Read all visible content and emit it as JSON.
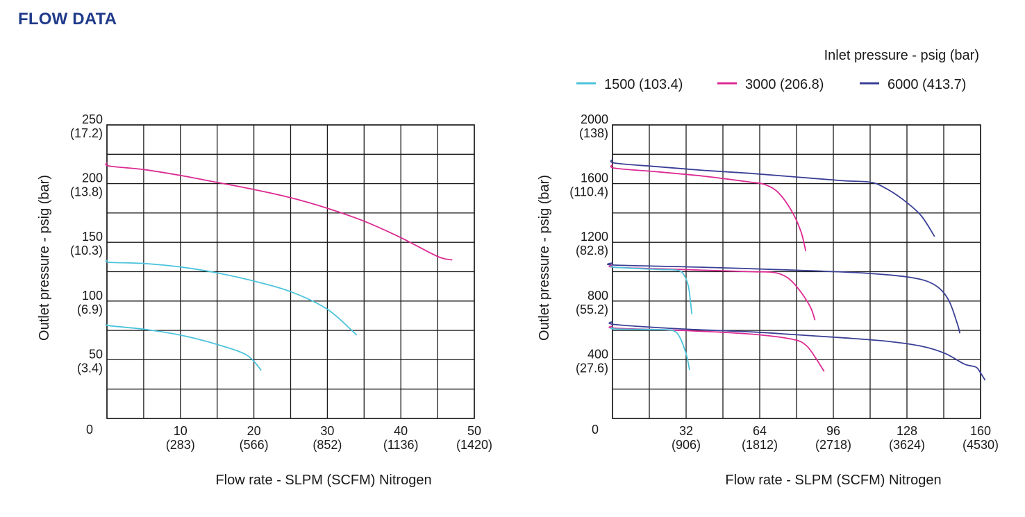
{
  "page": {
    "title": "FLOW DATA"
  },
  "colors": {
    "series_1500": "#4cc3dc",
    "series_3000": "#dc2a93",
    "series_6000": "#3a3f96",
    "grid": "#1a1a1a",
    "title": "#1f3a8a"
  },
  "legend": {
    "title": "Inlet pressure - psig (bar)",
    "items": [
      "1500 (103.4)",
      "3000 (206.8)",
      "6000 (413.7)"
    ]
  },
  "chart_data": [
    {
      "type": "line",
      "title": "",
      "xlabel": "Flow rate - SLPM (SCFM) Nitrogen",
      "ylabel": "Outlet pressure - psig (bar)",
      "xlim": [
        0,
        50
      ],
      "ylim": [
        0,
        250
      ],
      "grid": true,
      "x_ticks": [
        {
          "v": 0,
          "l1": "0",
          "l2": ""
        },
        {
          "v": 10,
          "l1": "10",
          "l2": "(283)"
        },
        {
          "v": 20,
          "l1": "20",
          "l2": "(566)"
        },
        {
          "v": 30,
          "l1": "30",
          "l2": "(852)"
        },
        {
          "v": 40,
          "l1": "40",
          "l2": "(1136)"
        },
        {
          "v": 50,
          "l1": "50",
          "l2": "(1420)"
        }
      ],
      "y_ticks": [
        {
          "v": 0,
          "l1": "0",
          "l2": ""
        },
        {
          "v": 50,
          "l1": "50",
          "l2": "(3.4)"
        },
        {
          "v": 100,
          "l1": "100",
          "l2": "(6.9)"
        },
        {
          "v": 150,
          "l1": "150",
          "l2": "(10.3)"
        },
        {
          "v": 200,
          "l1": "200",
          "l2": "(13.8)"
        },
        {
          "v": 250,
          "l1": "250",
          "l2": "(17.2)"
        }
      ],
      "series": [
        {
          "name": "3000 (206.8)",
          "color_key": "series_3000",
          "points": [
            [
              0,
              218
            ],
            [
              0.3,
              215
            ],
            [
              5,
              212
            ],
            [
              10,
              207
            ],
            [
              15,
              201
            ],
            [
              20,
              195
            ],
            [
              25,
              188
            ],
            [
              30,
              179
            ],
            [
              35,
              168
            ],
            [
              40,
              154
            ],
            [
              45,
              138
            ],
            [
              47,
              135
            ]
          ]
        },
        {
          "name": "1500 (103.4)",
          "color_key": "series_1500",
          "points": [
            [
              0,
              135
            ],
            [
              0.3,
              133
            ],
            [
              5,
              132
            ],
            [
              10,
              129
            ],
            [
              15,
              124
            ],
            [
              20,
              117
            ],
            [
              25,
              108
            ],
            [
              30,
              93
            ],
            [
              34,
              71
            ]
          ]
        },
        {
          "name": "1500 (103.4)",
          "color_key": "series_1500",
          "points": [
            [
              0,
              80
            ],
            [
              0.3,
              79
            ],
            [
              5,
              76
            ],
            [
              10,
              71
            ],
            [
              15,
              63
            ],
            [
              19,
              54
            ],
            [
              21,
              41
            ]
          ]
        }
      ]
    },
    {
      "type": "line",
      "title": "",
      "xlabel": "Flow rate - SLPM (SCFM) Nitrogen",
      "ylabel": "Outlet pressure - psig (bar)",
      "xlim": [
        0,
        160
      ],
      "ylim": [
        0,
        2000
      ],
      "grid": true,
      "x_ticks": [
        {
          "v": 0,
          "l1": "0",
          "l2": ""
        },
        {
          "v": 32,
          "l1": "32",
          "l2": "(906)"
        },
        {
          "v": 64,
          "l1": "64",
          "l2": "(1812)"
        },
        {
          "v": 96,
          "l1": "96",
          "l2": "(2718)"
        },
        {
          "v": 128,
          "l1": "128",
          "l2": "(3624)"
        },
        {
          "v": 160,
          "l1": "160",
          "l2": "(4530)"
        }
      ],
      "y_ticks": [
        {
          "v": 0,
          "l1": "0",
          "l2": ""
        },
        {
          "v": 400,
          "l1": "400",
          "l2": "(27.6)"
        },
        {
          "v": 800,
          "l1": "800",
          "l2": "(55.2)"
        },
        {
          "v": 1200,
          "l1": "1200",
          "l2": "(82.8)"
        },
        {
          "v": 1600,
          "l1": "1600",
          "l2": "(110.4)"
        },
        {
          "v": 2000,
          "l1": "2000",
          "l2": "(138)"
        }
      ],
      "series": [
        {
          "name": "6000 (413.7)",
          "color_key": "series_6000",
          "points": [
            [
              0,
              1765
            ],
            [
              1,
              1740
            ],
            [
              20,
              1715
            ],
            [
              40,
              1690
            ],
            [
              60,
              1670
            ],
            [
              80,
              1645
            ],
            [
              100,
              1620
            ],
            [
              112,
              1610
            ],
            [
              118,
              1575
            ],
            [
              126,
              1495
            ],
            [
              134,
              1385
            ],
            [
              140,
              1240
            ]
          ]
        },
        {
          "name": "3000 (206.8)",
          "color_key": "series_3000",
          "points": [
            [
              0,
              1730
            ],
            [
              1,
              1705
            ],
            [
              20,
              1680
            ],
            [
              40,
              1650
            ],
            [
              60,
              1610
            ],
            [
              66,
              1595
            ],
            [
              72,
              1540
            ],
            [
              78,
              1410
            ],
            [
              82,
              1270
            ],
            [
              84,
              1140
            ]
          ]
        },
        {
          "name": "6000 (413.7)",
          "color_key": "series_6000",
          "points": [
            [
              0,
              1060
            ],
            [
              1,
              1045
            ],
            [
              40,
              1030
            ],
            [
              80,
              1010
            ],
            [
              110,
              990
            ],
            [
              130,
              960
            ],
            [
              140,
              910
            ],
            [
              146,
              810
            ],
            [
              150,
              640
            ],
            [
              151,
              580
            ]
          ]
        },
        {
          "name": "3000 (206.8)",
          "color_key": "series_3000",
          "points": [
            [
              0,
              1045
            ],
            [
              1,
              1030
            ],
            [
              30,
              1015
            ],
            [
              60,
              1000
            ],
            [
              70,
              995
            ],
            [
              76,
              960
            ],
            [
              81,
              880
            ],
            [
              86,
              760
            ],
            [
              88,
              670
            ]
          ]
        },
        {
          "name": "1500 (103.4)",
          "color_key": "series_1500",
          "points": [
            [
              0,
              1040
            ],
            [
              1,
              1030
            ],
            [
              20,
              1015
            ],
            [
              28,
              1010
            ],
            [
              31,
              980
            ],
            [
              33,
              900
            ],
            [
              34,
              780
            ],
            [
              34.5,
              710
            ]
          ]
        },
        {
          "name": "6000 (413.7)",
          "color_key": "series_6000",
          "points": [
            [
              0,
              660
            ],
            [
              1,
              640
            ],
            [
              30,
              610
            ],
            [
              60,
              590
            ],
            [
              80,
              570
            ],
            [
              100,
              550
            ],
            [
              120,
              525
            ],
            [
              135,
              490
            ],
            [
              145,
              440
            ],
            [
              153,
              370
            ],
            [
              158,
              350
            ],
            [
              160,
              310
            ],
            [
              162,
              260
            ]
          ]
        },
        {
          "name": "3000 (206.8)",
          "color_key": "series_3000",
          "points": [
            [
              0,
              630
            ],
            [
              1,
              615
            ],
            [
              30,
              600
            ],
            [
              60,
              575
            ],
            [
              78,
              540
            ],
            [
              84,
              500
            ],
            [
              88,
              420
            ],
            [
              92,
              320
            ]
          ]
        },
        {
          "name": "1500 (103.4)",
          "color_key": "series_1500",
          "points": [
            [
              0,
              620
            ],
            [
              1,
              610
            ],
            [
              20,
              605
            ],
            [
              26,
              600
            ],
            [
              29,
              560
            ],
            [
              32,
              440
            ],
            [
              33.5,
              330
            ]
          ]
        }
      ]
    }
  ]
}
